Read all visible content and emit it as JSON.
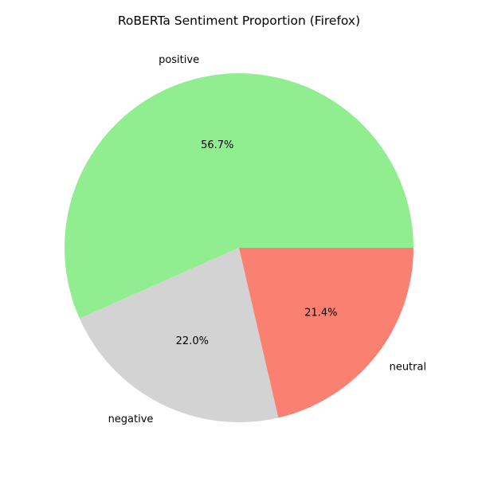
{
  "chart_data": {
    "type": "pie",
    "title": "RoBERTa Sentiment Proportion (Firefox)",
    "slices": [
      {
        "label": "positive",
        "value": 56.7,
        "pct_label": "56.7%",
        "color": "#90ee90"
      },
      {
        "label": "negative",
        "value": 22.0,
        "pct_label": "22.0%",
        "color": "#d3d3d3"
      },
      {
        "label": "neutral",
        "value": 21.4,
        "pct_label": "21.4%",
        "color": "#fa8072"
      }
    ],
    "start_angle_deg": 0,
    "direction": "counterclockwise"
  }
}
